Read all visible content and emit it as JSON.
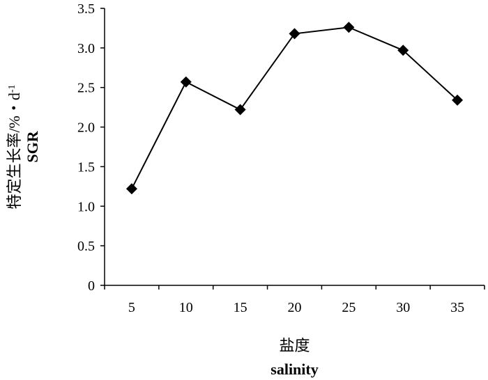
{
  "chart_data": {
    "type": "line",
    "title": "",
    "x": [
      5,
      10,
      15,
      20,
      25,
      30,
      35
    ],
    "x_tick_labels": [
      "5",
      "10",
      "15",
      "20",
      "25",
      "30",
      "35"
    ],
    "series": [
      {
        "values": [
          1.22,
          2.57,
          2.22,
          3.18,
          3.26,
          2.97,
          2.34
        ],
        "marker": "diamond",
        "color": "#000000"
      }
    ],
    "xlabel": "盐度",
    "xlabel_en": "salinity",
    "ylabel": "特定生长率/%・d",
    "ylabel_sup": "-1",
    "ylabel_en": "SGR",
    "ylim": [
      0,
      3.5
    ],
    "y_ticks": [
      0,
      0.5,
      1.0,
      1.5,
      2.0,
      2.5,
      3.0,
      3.5
    ],
    "y_tick_labels": [
      "0",
      "0.5",
      "1.0",
      "1.5",
      "2.0",
      "2.5",
      "3.0",
      "3.5"
    ],
    "grid": false,
    "legend": "none"
  }
}
